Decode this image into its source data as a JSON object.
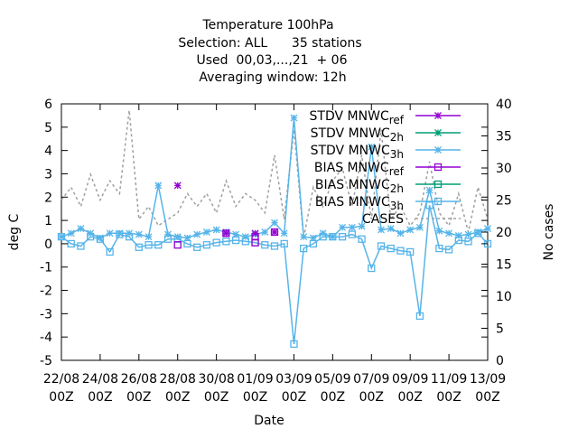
{
  "chart_data": {
    "type": "line",
    "title_lines": [
      "Temperature 100hPa",
      "Selection: ALL      35 stations",
      "Used  00,03,...,21  + 06",
      "Averaging window: 12h"
    ],
    "xlabel": "Date",
    "ylabel": "deg C",
    "y2label": "No cases",
    "ylim": [
      -5,
      6
    ],
    "y2lim": [
      0,
      40
    ],
    "yticks": [
      -5,
      -4,
      -3,
      -2,
      -1,
      0,
      1,
      2,
      3,
      4,
      5,
      6
    ],
    "y2ticks": [
      0,
      5,
      10,
      15,
      20,
      25,
      30,
      35,
      40
    ],
    "x_start": "2021-08-22 00Z",
    "x_end": "2021-09-13 00Z",
    "xtick_lines": [
      [
        "22/08",
        "00Z"
      ],
      [
        "24/08",
        "00Z"
      ],
      [
        "26/08",
        "00Z"
      ],
      [
        "28/08",
        "00Z"
      ],
      [
        "30/08",
        "00Z"
      ],
      [
        "01/09",
        "00Z"
      ],
      [
        "03/09",
        "00Z"
      ],
      [
        "05/09",
        "00Z"
      ],
      [
        "07/09",
        "00Z"
      ],
      [
        "09/09",
        "00Z"
      ],
      [
        "11/09",
        "00Z"
      ],
      [
        "13/09",
        "00Z"
      ]
    ],
    "legend_position": "top-right",
    "legend": [
      {
        "label": "STDV MNWC_ref",
        "color": "#9400d3",
        "marker": "x"
      },
      {
        "label": "STDV MNWC_2h",
        "color": "#009e73",
        "marker": "x"
      },
      {
        "label": "STDV MNWC_3h",
        "color": "#56b4e9",
        "marker": "x"
      },
      {
        "label": "BIAS MNWC_ref",
        "color": "#9400d3",
        "marker": "square"
      },
      {
        "label": "BIAS MNWC_2h",
        "color": "#009e73",
        "marker": "square"
      },
      {
        "label": "BIAS MNWC_3h",
        "color": "#56b4e9",
        "marker": "square"
      },
      {
        "label": "CASES",
        "color": "#a0a0a0",
        "marker": "none"
      }
    ],
    "x_days": [
      0,
      0.5,
      1,
      1.5,
      2,
      2.5,
      3,
      3.5,
      4,
      4.5,
      5,
      5.5,
      6,
      6.5,
      7,
      7.5,
      8,
      8.5,
      9,
      9.5,
      10,
      10.5,
      11,
      11.5,
      12,
      12.5,
      13,
      13.5,
      14,
      14.5,
      15,
      15.5,
      16,
      16.5,
      17,
      17.5,
      18,
      18.5,
      19,
      19.5,
      20,
      20.5,
      21,
      21.5,
      22
    ],
    "series": [
      {
        "name": "STDV MNWC_3h",
        "color": "#56b4e9",
        "marker": "x",
        "axis": "y",
        "values": [
          0.3,
          0.45,
          0.65,
          0.45,
          0.25,
          0.45,
          0.45,
          0.45,
          0.4,
          0.3,
          2.5,
          0.4,
          0.3,
          0.25,
          0.4,
          0.5,
          0.6,
          0.5,
          0.4,
          0.3,
          0.4,
          0.5,
          0.9,
          0.45,
          5.4,
          0.3,
          0.25,
          0.45,
          0.3,
          0.7,
          0.7,
          0.75,
          4.15,
          0.6,
          0.65,
          0.45,
          0.6,
          0.7,
          2.3,
          0.55,
          0.45,
          0.35,
          0.4,
          0.5,
          0.65
        ]
      },
      {
        "name": "BIAS MNWC_3h",
        "color": "#56b4e9",
        "marker": "square",
        "axis": "y",
        "values": [
          0.3,
          0.0,
          -0.1,
          0.3,
          0.2,
          -0.35,
          0.4,
          0.3,
          -0.15,
          -0.05,
          -0.05,
          0.2,
          0.2,
          0.0,
          -0.15,
          -0.05,
          0.05,
          0.1,
          0.15,
          0.1,
          0.05,
          -0.05,
          -0.1,
          0.0,
          -4.3,
          -0.2,
          0.0,
          0.3,
          0.3,
          0.3,
          0.4,
          0.2,
          -1.05,
          -0.1,
          -0.2,
          -0.3,
          -0.35,
          -3.1,
          1.65,
          -0.2,
          -0.25,
          0.15,
          0.1,
          0.45,
          0.0
        ]
      },
      {
        "name": "CASES",
        "color": "#a0a0a0",
        "marker": "none",
        "axis": "y2",
        "values": [
          25,
          27,
          24,
          29,
          25,
          28,
          26,
          39,
          22,
          24,
          21,
          22,
          23,
          26,
          24,
          26,
          23,
          28,
          24,
          26,
          25,
          23,
          32,
          22,
          36,
          19,
          27,
          24,
          28,
          30,
          24,
          32,
          22,
          36,
          22,
          24,
          21,
          23,
          31,
          23,
          21,
          26,
          20,
          27,
          22
        ]
      }
    ],
    "highlight_points": [
      {
        "series": "STDV MNWC_ref",
        "color": "#9400d3",
        "marker": "x",
        "x_day": 6,
        "value": 2.5
      },
      {
        "series": "STDV MNWC_ref",
        "color": "#9400d3",
        "marker": "x",
        "x_day": 8.5,
        "value": 0.45
      },
      {
        "series": "STDV MNWC_ref",
        "color": "#9400d3",
        "marker": "x",
        "x_day": 10,
        "value": 0.45
      },
      {
        "series": "STDV MNWC_ref",
        "color": "#9400d3",
        "marker": "x",
        "x_day": 11,
        "value": 0.5
      },
      {
        "series": "BIAS MNWC_ref",
        "color": "#9400d3",
        "marker": "square",
        "x_day": 6,
        "value": -0.05
      },
      {
        "series": "BIAS MNWC_ref",
        "color": "#9400d3",
        "marker": "square",
        "x_day": 8.5,
        "value": 0.45
      },
      {
        "series": "BIAS MNWC_ref",
        "color": "#9400d3",
        "marker": "square",
        "x_day": 10,
        "value": 0.3
      },
      {
        "series": "BIAS MNWC_ref",
        "color": "#9400d3",
        "marker": "square",
        "x_day": 10,
        "value": 0.05
      },
      {
        "series": "BIAS MNWC_ref",
        "color": "#9400d3",
        "marker": "square",
        "x_day": 11,
        "value": 0.5
      }
    ]
  }
}
